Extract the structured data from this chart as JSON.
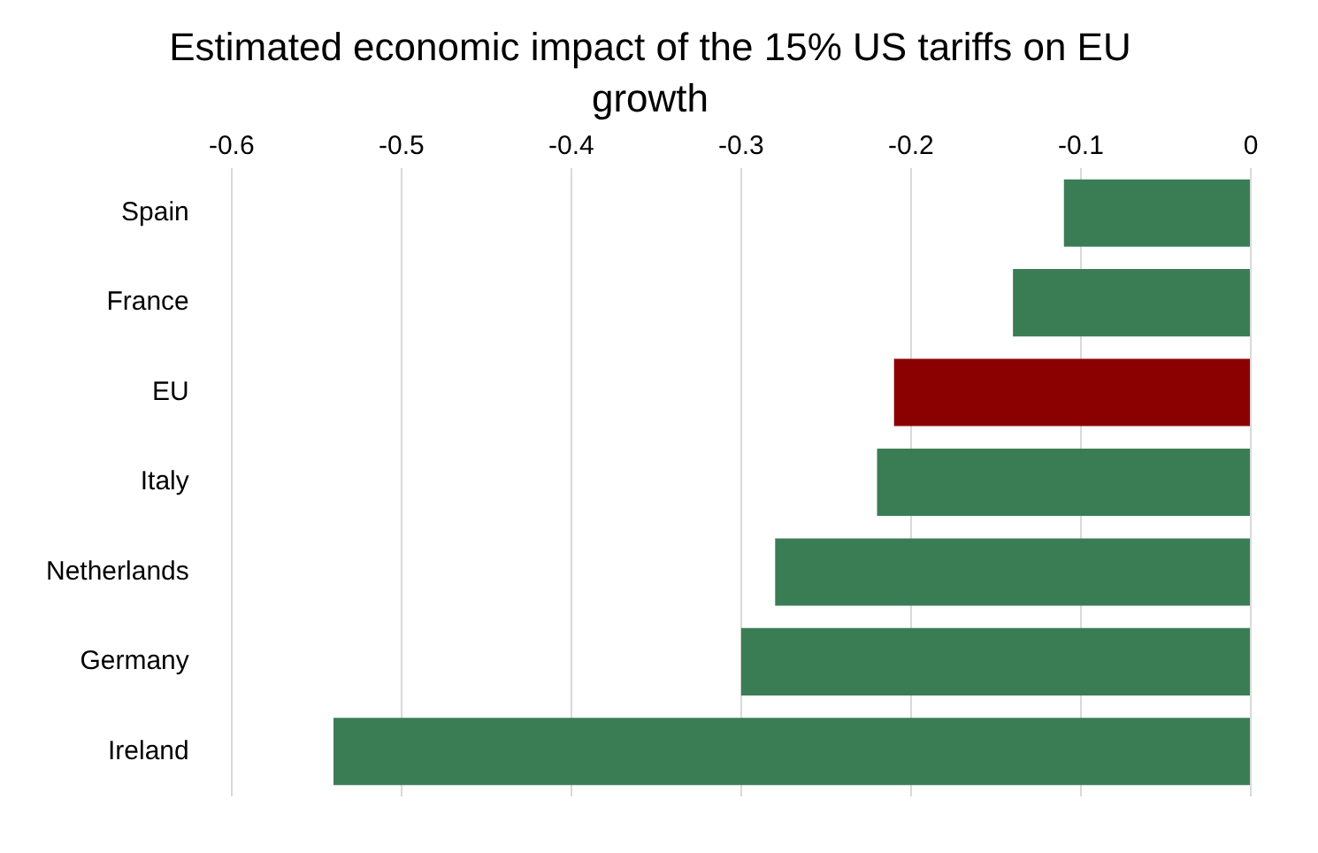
{
  "chart_data": {
    "type": "bar",
    "orientation": "horizontal",
    "title": "Estimated economic impact of the 15% US tariffs on EU growth",
    "categories": [
      "Spain",
      "France",
      "EU",
      "Italy",
      "Netherlands",
      "Germany",
      "Ireland"
    ],
    "values": [
      -0.11,
      -0.14,
      -0.21,
      -0.22,
      -0.28,
      -0.3,
      -0.54
    ],
    "colors": [
      "#3a7d55",
      "#3a7d55",
      "#8b0000",
      "#3a7d55",
      "#3a7d55",
      "#3a7d55",
      "#3a7d55"
    ],
    "xlim": [
      -0.6,
      0
    ],
    "xticks": [
      -0.6,
      -0.5,
      -0.4,
      -0.3,
      -0.2,
      -0.1,
      0
    ],
    "grid": "x",
    "legend": false
  }
}
